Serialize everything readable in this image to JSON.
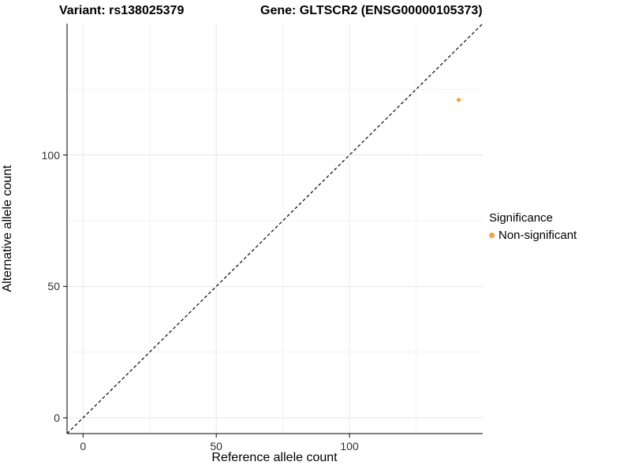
{
  "chart_data": {
    "type": "scatter",
    "titles": {
      "left": "Variant: rs138025379",
      "right": "Gene: GLTSCR2 (ENSG00000105373)"
    },
    "xlabel": "Reference allele count",
    "ylabel": "Alternative allele count",
    "xlim": [
      -6,
      150
    ],
    "ylim": [
      -6,
      150
    ],
    "x_ticks": [
      0,
      50,
      100
    ],
    "y_ticks": [
      0,
      50,
      100
    ],
    "minor_ticks": [
      25,
      75,
      125
    ],
    "grid": true,
    "identity_line": {
      "style": "dashed",
      "from": [
        -6,
        -6
      ],
      "to": [
        150,
        150
      ],
      "color": "#000000"
    },
    "series": [
      {
        "name": "Non-significant",
        "color": "#F9A03F",
        "points": [
          {
            "x": 141,
            "y": 121
          }
        ]
      }
    ],
    "legend": {
      "title": "Significance",
      "position": "right",
      "entries": [
        {
          "label": "Non-significant",
          "color": "#F9A03F"
        }
      ]
    },
    "colors": {
      "grid_major": "#E7E7E7",
      "grid_minor": "#F3F3F3",
      "axis": "#000000",
      "tick": "#000000"
    }
  }
}
